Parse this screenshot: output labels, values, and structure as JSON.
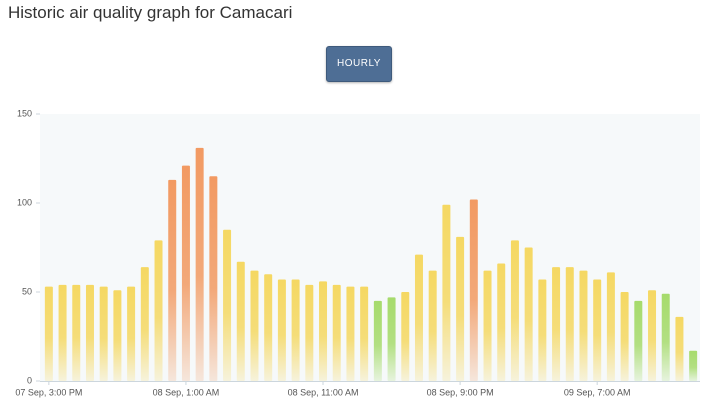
{
  "chart_data": {
    "type": "bar",
    "title": "Historic air quality graph for Camacari",
    "button": "HOURLY",
    "categories": [
      "07 Sep, 3:00 PM",
      null,
      null,
      null,
      null,
      null,
      null,
      null,
      null,
      null,
      "08 Sep, 1:00 AM",
      null,
      null,
      null,
      null,
      null,
      null,
      null,
      null,
      null,
      "08 Sep, 11:00 AM",
      null,
      null,
      null,
      null,
      null,
      null,
      null,
      null,
      null,
      "08 Sep, 9:00 PM",
      null,
      null,
      null,
      null,
      null,
      null,
      null,
      null,
      null,
      "09 Sep, 7:00 AM",
      null,
      null,
      null,
      null,
      null,
      null,
      null
    ],
    "values": [
      53,
      54,
      54,
      54,
      53,
      51,
      53,
      64,
      79,
      113,
      121,
      131,
      115,
      85,
      67,
      62,
      60,
      57,
      57,
      54,
      56,
      54,
      53,
      53,
      45,
      47,
      50,
      71,
      62,
      99,
      81,
      102,
      62,
      66,
      79,
      75,
      57,
      64,
      64,
      62,
      57,
      61,
      50,
      45,
      51,
      49,
      36,
      17
    ],
    "colors": [
      "#f5d862",
      "#f5d862",
      "#f5d862",
      "#f5d862",
      "#f5d862",
      "#f5d862",
      "#f5d862",
      "#f5d862",
      "#f5d862",
      "#f29a62",
      "#f29a62",
      "#f29a62",
      "#f29a62",
      "#f5d862",
      "#f5d862",
      "#f5d862",
      "#f5d862",
      "#f5d862",
      "#f5d862",
      "#f5d862",
      "#f5d862",
      "#f5d862",
      "#f5d862",
      "#f5d862",
      "#a6db6c",
      "#a6db6c",
      "#f5d862",
      "#f5d862",
      "#f5d862",
      "#f5d862",
      "#f5d862",
      "#f29a62",
      "#f5d862",
      "#f5d862",
      "#f5d862",
      "#f5d862",
      "#f5d862",
      "#f5d862",
      "#f5d862",
      "#f5d862",
      "#f5d862",
      "#f5d862",
      "#f5d862",
      "#a6db6c",
      "#f5d862",
      "#a6db6c",
      "#f5d862",
      "#a6db6c"
    ],
    "ylim": [
      0,
      150
    ],
    "yticks": [
      0,
      50,
      100,
      150
    ]
  }
}
